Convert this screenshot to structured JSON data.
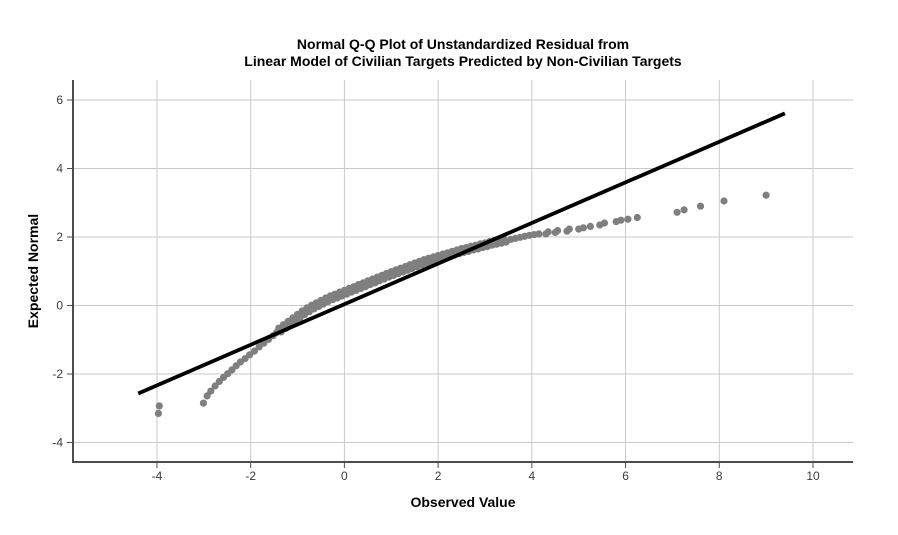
{
  "figure": {
    "title_line1": "Normal Q-Q Plot of Unstandardized Residual from",
    "title_line2": "Linear Model of Civilian Targets Predicted by Non-Civilian Targets"
  },
  "colors": {
    "point": "#7f7f7f",
    "reference_line": "#000000",
    "gridline": "#c9c9c9",
    "axis": "#4d4d4d",
    "tick_label": "#3c3c3c",
    "background": "#ffffff"
  },
  "chart_data": {
    "type": "scatter",
    "title": "Normal Q-Q Plot of Unstandardized Residual from Linear Model of Civilian Targets Predicted by Non-Civilian Targets",
    "xlabel": "Observed Value",
    "ylabel": "Expected Normal",
    "xlim": [
      -5.8,
      10.9
    ],
    "ylim": [
      -4.6,
      6.6
    ],
    "x_ticks": [
      -4,
      -2,
      0,
      2,
      4,
      6,
      8,
      10
    ],
    "y_ticks": [
      -4,
      -2,
      0,
      2,
      4,
      6
    ],
    "grid": true,
    "legend": "none",
    "series": [
      {
        "name": "observed-vs-expected-points",
        "kind": "scatter",
        "points": [
          [
            -3.97,
            -3.15
          ],
          [
            -3.95,
            -2.93
          ],
          [
            -3.01,
            -2.85
          ],
          [
            -2.93,
            -2.64
          ],
          [
            -2.85,
            -2.5
          ],
          [
            -2.76,
            -2.35
          ],
          [
            -2.67,
            -2.22
          ],
          [
            -2.58,
            -2.1
          ],
          [
            -2.49,
            -1.99
          ],
          [
            -2.4,
            -1.88
          ],
          [
            -2.31,
            -1.76
          ],
          [
            -2.22,
            -1.65
          ],
          [
            -2.12,
            -1.55
          ],
          [
            -2.02,
            -1.44
          ],
          [
            -1.92,
            -1.33
          ],
          [
            -1.82,
            -1.21
          ],
          [
            -1.72,
            -1.1
          ],
          [
            -1.62,
            -0.99
          ],
          [
            -1.52,
            -0.88
          ],
          [
            -1.45,
            -0.79
          ],
          [
            -1.4,
            -0.66
          ],
          [
            -1.35,
            -0.77
          ],
          [
            -1.3,
            -0.56
          ],
          [
            -1.25,
            -0.67
          ],
          [
            -1.2,
            -0.46
          ],
          [
            -1.15,
            -0.57
          ],
          [
            -1.1,
            -0.36
          ],
          [
            -1.05,
            -0.47
          ],
          [
            -1.0,
            -0.26
          ],
          [
            -0.95,
            -0.37
          ],
          [
            -0.9,
            -0.16
          ],
          [
            -0.85,
            -0.27
          ],
          [
            -0.8,
            -0.07
          ],
          [
            -0.75,
            -0.18
          ],
          [
            -0.7,
            0.01
          ],
          [
            -0.65,
            -0.1
          ],
          [
            -0.6,
            0.08
          ],
          [
            -0.55,
            -0.03
          ],
          [
            -0.5,
            0.15
          ],
          [
            -0.45,
            0.04
          ],
          [
            -0.4,
            0.22
          ],
          [
            -0.35,
            0.11
          ],
          [
            -0.3,
            0.28
          ],
          [
            -0.25,
            0.17
          ],
          [
            -0.2,
            0.33
          ],
          [
            -0.15,
            0.22
          ],
          [
            -0.1,
            0.39
          ],
          [
            -0.05,
            0.28
          ],
          [
            0.0,
            0.44
          ],
          [
            0.05,
            0.33
          ],
          [
            0.1,
            0.5
          ],
          [
            0.15,
            0.39
          ],
          [
            0.2,
            0.55
          ],
          [
            0.25,
            0.44
          ],
          [
            0.3,
            0.61
          ],
          [
            0.35,
            0.5
          ],
          [
            0.4,
            0.66
          ],
          [
            0.45,
            0.55
          ],
          [
            0.5,
            0.72
          ],
          [
            0.55,
            0.61
          ],
          [
            0.6,
            0.77
          ],
          [
            0.65,
            0.66
          ],
          [
            0.7,
            0.83
          ],
          [
            0.75,
            0.72
          ],
          [
            0.8,
            0.88
          ],
          [
            0.85,
            0.77
          ],
          [
            0.9,
            0.94
          ],
          [
            0.95,
            0.83
          ],
          [
            1.0,
            0.99
          ],
          [
            1.05,
            0.88
          ],
          [
            1.1,
            1.04
          ],
          [
            1.15,
            0.93
          ],
          [
            1.2,
            1.09
          ],
          [
            1.25,
            0.98
          ],
          [
            1.3,
            1.14
          ],
          [
            1.35,
            1.03
          ],
          [
            1.4,
            1.19
          ],
          [
            1.45,
            1.08
          ],
          [
            1.5,
            1.24
          ],
          [
            1.55,
            1.13
          ],
          [
            1.6,
            1.29
          ],
          [
            1.65,
            1.18
          ],
          [
            1.7,
            1.34
          ],
          [
            1.75,
            1.23
          ],
          [
            1.8,
            1.38
          ],
          [
            1.85,
            1.27
          ],
          [
            1.9,
            1.42
          ],
          [
            1.95,
            1.31
          ],
          [
            2.0,
            1.46
          ],
          [
            2.05,
            1.35
          ],
          [
            2.1,
            1.5
          ],
          [
            2.15,
            1.39
          ],
          [
            2.2,
            1.54
          ],
          [
            2.25,
            1.43
          ],
          [
            2.3,
            1.58
          ],
          [
            2.35,
            1.47
          ],
          [
            2.4,
            1.62
          ],
          [
            2.45,
            1.51
          ],
          [
            2.5,
            1.66
          ],
          [
            2.55,
            1.55
          ],
          [
            2.6,
            1.69
          ],
          [
            2.65,
            1.58
          ],
          [
            2.7,
            1.73
          ],
          [
            2.75,
            1.62
          ],
          [
            2.8,
            1.76
          ],
          [
            2.85,
            1.65
          ],
          [
            2.9,
            1.8
          ],
          [
            2.95,
            1.69
          ],
          [
            3.0,
            1.83
          ],
          [
            3.05,
            1.72
          ],
          [
            3.1,
            1.87
          ],
          [
            3.15,
            1.76
          ],
          [
            3.2,
            1.9
          ],
          [
            3.25,
            1.79
          ],
          [
            3.3,
            1.93
          ],
          [
            3.35,
            1.82
          ],
          [
            3.4,
            1.96
          ],
          [
            3.45,
            1.85
          ],
          [
            3.55,
            1.93
          ],
          [
            3.65,
            1.96
          ],
          [
            3.75,
            1.99
          ],
          [
            3.85,
            2.02
          ],
          [
            3.95,
            2.05
          ],
          [
            4.05,
            2.07
          ],
          [
            4.15,
            2.09
          ],
          [
            4.3,
            2.09
          ],
          [
            4.35,
            2.15
          ],
          [
            4.5,
            2.13
          ],
          [
            4.55,
            2.19
          ],
          [
            4.75,
            2.17
          ],
          [
            4.8,
            2.23
          ],
          [
            5.0,
            2.23
          ],
          [
            5.1,
            2.27
          ],
          [
            5.25,
            2.31
          ],
          [
            5.45,
            2.35
          ],
          [
            5.55,
            2.41
          ],
          [
            5.8,
            2.45
          ],
          [
            5.9,
            2.49
          ],
          [
            6.05,
            2.52
          ],
          [
            6.25,
            2.57
          ],
          [
            7.1,
            2.72
          ],
          [
            7.25,
            2.79
          ],
          [
            7.6,
            2.9
          ],
          [
            8.1,
            3.05
          ],
          [
            9.0,
            3.22
          ]
        ]
      },
      {
        "name": "normal-reference-line",
        "kind": "line",
        "points": [
          [
            -4.4,
            -2.57
          ],
          [
            9.4,
            5.61
          ]
        ]
      }
    ]
  }
}
